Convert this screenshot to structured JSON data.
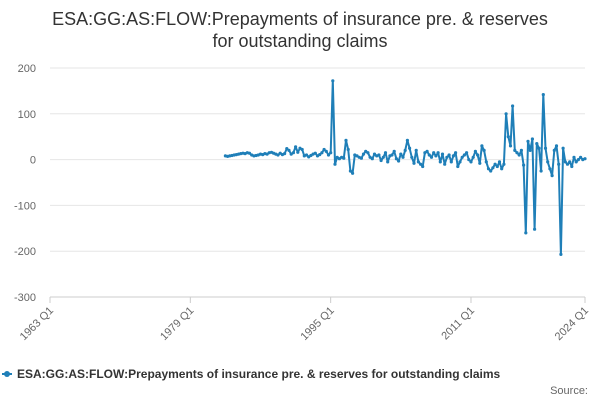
{
  "chart_data": {
    "type": "line",
    "title_lines": [
      "ESA:GG:AS:FLOW:Prepayments of insurance pre. & reserves",
      "for outstanding claims"
    ],
    "xlabel": "",
    "ylabel": "",
    "x_range": [
      1963.0,
      2024.0
    ],
    "ylim": [
      -300,
      200
    ],
    "y_ticks": [
      200,
      100,
      0,
      -100,
      -200,
      -300
    ],
    "x_ticks": [
      {
        "label": "1963 Q1",
        "year": 1963.0
      },
      {
        "label": "1979 Q1",
        "year": 1979.0
      },
      {
        "label": "1995 Q1",
        "year": 1995.0
      },
      {
        "label": "2011 Q1",
        "year": 2011.0
      },
      {
        "label": "2024 Q1",
        "year": 2024.0
      }
    ],
    "grid": "horizontal",
    "legend_position": "bottom",
    "color": "#1f7fb8",
    "series": [
      {
        "name": "ESA:GG:AS:FLOW:Prepayments of insurance pre. & reserves for outstanding claims",
        "points": [
          [
            1983.0,
            8
          ],
          [
            1983.25,
            7
          ],
          [
            1983.5,
            8
          ],
          [
            1983.75,
            9
          ],
          [
            1984.0,
            10
          ],
          [
            1984.25,
            11
          ],
          [
            1984.5,
            12
          ],
          [
            1984.75,
            13
          ],
          [
            1985.0,
            14
          ],
          [
            1985.25,
            13
          ],
          [
            1985.5,
            15
          ],
          [
            1985.75,
            14
          ],
          [
            1986.0,
            10
          ],
          [
            1986.25,
            8
          ],
          [
            1986.5,
            9
          ],
          [
            1986.75,
            10
          ],
          [
            1987.0,
            12
          ],
          [
            1987.25,
            11
          ],
          [
            1987.5,
            13
          ],
          [
            1987.75,
            12
          ],
          [
            1988.0,
            15
          ],
          [
            1988.25,
            16
          ],
          [
            1988.5,
            14
          ],
          [
            1988.75,
            12
          ],
          [
            1989.0,
            10
          ],
          [
            1989.25,
            14
          ],
          [
            1989.5,
            11
          ],
          [
            1989.75,
            13
          ],
          [
            1990.0,
            24
          ],
          [
            1990.25,
            20
          ],
          [
            1990.5,
            12
          ],
          [
            1990.75,
            15
          ],
          [
            1991.0,
            28
          ],
          [
            1991.25,
            16
          ],
          [
            1991.5,
            25
          ],
          [
            1991.75,
            22
          ],
          [
            1992.0,
            8
          ],
          [
            1992.25,
            10
          ],
          [
            1992.5,
            6
          ],
          [
            1992.75,
            9
          ],
          [
            1993.0,
            12
          ],
          [
            1993.25,
            14
          ],
          [
            1993.5,
            8
          ],
          [
            1993.75,
            11
          ],
          [
            1994.0,
            15
          ],
          [
            1994.25,
            22
          ],
          [
            1994.5,
            18
          ],
          [
            1994.75,
            10
          ],
          [
            1995.0,
            15
          ],
          [
            1995.25,
            172
          ],
          [
            1995.5,
            -10
          ],
          [
            1995.75,
            5
          ],
          [
            1996.0,
            2
          ],
          [
            1996.25,
            5
          ],
          [
            1996.5,
            3
          ],
          [
            1996.75,
            42
          ],
          [
            1997.0,
            22
          ],
          [
            1997.25,
            -25
          ],
          [
            1997.5,
            -30
          ],
          [
            1997.75,
            10
          ],
          [
            1998.0,
            8
          ],
          [
            1998.25,
            5
          ],
          [
            1998.5,
            3
          ],
          [
            1998.75,
            12
          ],
          [
            1999.0,
            18
          ],
          [
            1999.25,
            15
          ],
          [
            1999.5,
            5
          ],
          [
            1999.75,
            2
          ],
          [
            2000.0,
            12
          ],
          [
            2000.25,
            8
          ],
          [
            2000.5,
            10
          ],
          [
            2000.75,
            -2
          ],
          [
            2001.0,
            5
          ],
          [
            2001.25,
            15
          ],
          [
            2001.5,
            -5
          ],
          [
            2001.75,
            8
          ],
          [
            2002.0,
            10
          ],
          [
            2002.25,
            18
          ],
          [
            2002.5,
            2
          ],
          [
            2002.75,
            -3
          ],
          [
            2003.0,
            12
          ],
          [
            2003.25,
            5
          ],
          [
            2003.5,
            20
          ],
          [
            2003.75,
            42
          ],
          [
            2004.0,
            25
          ],
          [
            2004.25,
            5
          ],
          [
            2004.5,
            -8
          ],
          [
            2004.75,
            20
          ],
          [
            2005.0,
            -5
          ],
          [
            2005.25,
            -10
          ],
          [
            2005.5,
            -15
          ],
          [
            2005.75,
            15
          ],
          [
            2006.0,
            18
          ],
          [
            2006.25,
            10
          ],
          [
            2006.5,
            5
          ],
          [
            2006.75,
            15
          ],
          [
            2007.0,
            8
          ],
          [
            2007.25,
            15
          ],
          [
            2007.5,
            -5
          ],
          [
            2007.75,
            12
          ],
          [
            2008.0,
            -10
          ],
          [
            2008.25,
            5
          ],
          [
            2008.5,
            10
          ],
          [
            2008.75,
            -5
          ],
          [
            2009.0,
            8
          ],
          [
            2009.25,
            15
          ],
          [
            2009.5,
            -15
          ],
          [
            2009.75,
            -5
          ],
          [
            2010.0,
            5
          ],
          [
            2010.25,
            10
          ],
          [
            2010.5,
            15
          ],
          [
            2010.75,
            0
          ],
          [
            2011.0,
            -5
          ],
          [
            2011.25,
            5
          ],
          [
            2011.5,
            18
          ],
          [
            2011.75,
            10
          ],
          [
            2012.0,
            -8
          ],
          [
            2012.25,
            30
          ],
          [
            2012.5,
            20
          ],
          [
            2012.75,
            -5
          ],
          [
            2013.0,
            -20
          ],
          [
            2013.25,
            -25
          ],
          [
            2013.5,
            -18
          ],
          [
            2013.75,
            -10
          ],
          [
            2014.0,
            -15
          ],
          [
            2014.25,
            -5
          ],
          [
            2014.5,
            -20
          ],
          [
            2014.75,
            -10
          ],
          [
            2015.0,
            100
          ],
          [
            2015.25,
            50
          ],
          [
            2015.5,
            30
          ],
          [
            2015.75,
            117
          ],
          [
            2016.0,
            20
          ],
          [
            2016.25,
            15
          ],
          [
            2016.5,
            10
          ],
          [
            2016.75,
            20
          ],
          [
            2017.0,
            -12
          ],
          [
            2017.25,
            -160
          ],
          [
            2017.5,
            40
          ],
          [
            2017.75,
            20
          ],
          [
            2018.0,
            45
          ],
          [
            2018.25,
            -152
          ],
          [
            2018.5,
            35
          ],
          [
            2018.75,
            25
          ],
          [
            2019.0,
            -25
          ],
          [
            2019.25,
            142
          ],
          [
            2019.5,
            25
          ],
          [
            2019.75,
            -5
          ],
          [
            2020.0,
            -20
          ],
          [
            2020.25,
            -35
          ],
          [
            2020.5,
            20
          ],
          [
            2020.75,
            30
          ],
          [
            2021.0,
            -10
          ],
          [
            2021.25,
            -207
          ],
          [
            2021.5,
            25
          ],
          [
            2021.75,
            -5
          ],
          [
            2022.0,
            -10
          ],
          [
            2022.25,
            -5
          ],
          [
            2022.5,
            -15
          ],
          [
            2022.75,
            5
          ],
          [
            2023.0,
            -5
          ],
          [
            2023.25,
            0
          ],
          [
            2023.5,
            5
          ],
          [
            2023.75,
            0
          ],
          [
            2024.0,
            2
          ]
        ]
      }
    ]
  },
  "legend": {
    "label": "ESA:GG:AS:FLOW:Prepayments of insurance pre. & reserves for outstanding claims",
    "color": "#1f7fb8"
  },
  "source": {
    "label": "Source:"
  }
}
